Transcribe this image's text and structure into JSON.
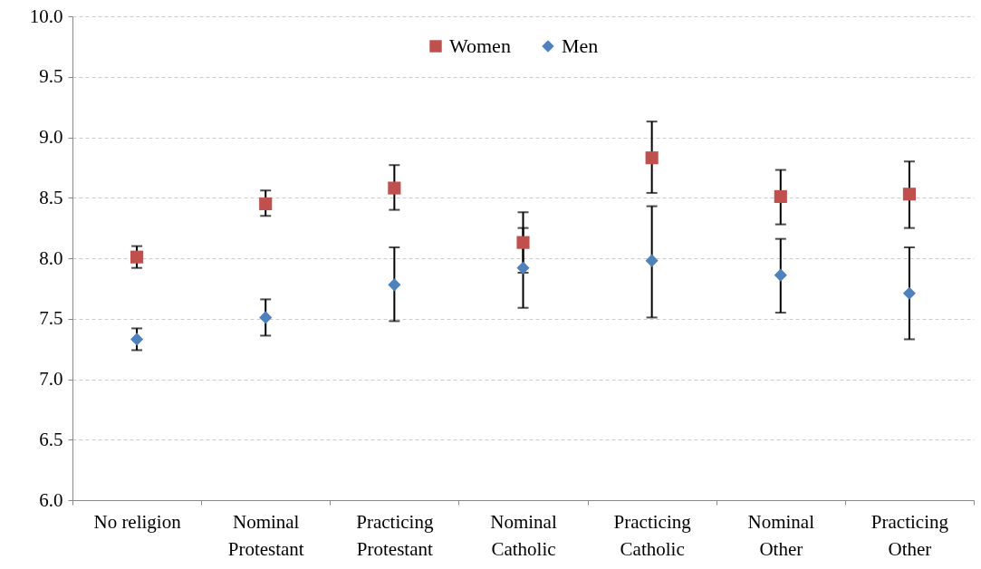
{
  "chart_data": {
    "type": "scatter",
    "categories": [
      "No religion",
      "Nominal Protestant",
      "Practicing Protestant",
      "Nominal Catholic",
      "Practicing Catholic",
      "Nominal Other",
      "Practicing Other"
    ],
    "series": [
      {
        "name": "Women",
        "color": "#c0504d",
        "marker": "square",
        "values": [
          8.01,
          8.45,
          8.58,
          8.13,
          8.83,
          8.51,
          8.53
        ],
        "errors": [
          [
            7.92,
            8.1
          ],
          [
            8.35,
            8.56
          ],
          [
            8.4,
            8.77
          ],
          [
            7.88,
            8.38
          ],
          [
            8.54,
            9.13
          ],
          [
            8.28,
            8.73
          ],
          [
            8.25,
            8.8
          ]
        ]
      },
      {
        "name": "Men",
        "color": "#4f81bd",
        "marker": "diamond",
        "values": [
          7.33,
          7.51,
          7.78,
          7.92,
          7.98,
          7.86,
          7.71
        ],
        "errors": [
          [
            7.24,
            7.42
          ],
          [
            7.36,
            7.66
          ],
          [
            7.48,
            8.09
          ],
          [
            7.59,
            8.25
          ],
          [
            7.51,
            8.43
          ],
          [
            7.55,
            8.16
          ],
          [
            7.33,
            8.09
          ]
        ]
      }
    ],
    "ylim": [
      6,
      10
    ],
    "yticks": [
      {
        "value": 6,
        "label": "6.0"
      },
      {
        "value": 6.5,
        "label": "6.5"
      },
      {
        "value": 7,
        "label": "7.0"
      },
      {
        "value": 7.5,
        "label": "7.5"
      },
      {
        "value": 8,
        "label": "8.0"
      },
      {
        "value": 8.5,
        "label": "8.5"
      },
      {
        "value": 9,
        "label": "9.0"
      },
      {
        "value": 9.5,
        "label": "9.5"
      },
      {
        "value": 10,
        "label": "10.0"
      }
    ],
    "grid": "y",
    "legend": "top"
  }
}
